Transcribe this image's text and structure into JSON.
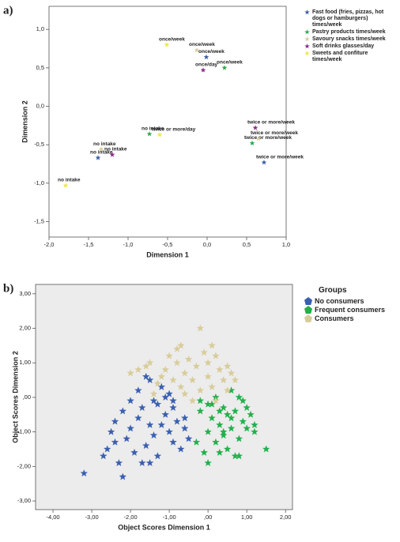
{
  "chart_data": [
    {
      "type": "scatter",
      "panel_label": "a)",
      "x_label": "Dimension 1",
      "y_label": "Dimension 2",
      "xlim": [
        -2.0,
        1.0
      ],
      "ylim": [
        -1.7,
        1.3
      ],
      "xticks": [
        {
          "value": -2.0,
          "label": "-2,0"
        },
        {
          "value": -1.5,
          "label": "-1,5"
        },
        {
          "value": -1.0,
          "label": "-1,0"
        },
        {
          "value": -0.5,
          "label": "-0,5"
        },
        {
          "value": 0.0,
          "label": "0,0"
        },
        {
          "value": 0.5,
          "label": "0,5"
        },
        {
          "value": 1.0,
          "label": "1,0"
        }
      ],
      "yticks": [
        {
          "value": 1.0,
          "label": "1,0"
        },
        {
          "value": 0.5,
          "label": "0,5"
        },
        {
          "value": 0.0,
          "label": "0,0"
        },
        {
          "value": -0.5,
          "label": "-0,5"
        },
        {
          "value": -1.0,
          "label": "-1,0"
        },
        {
          "value": -1.5,
          "label": "-1,5"
        }
      ],
      "series": [
        {
          "name": "Fast food (fries, pizzas, hot dogs or hamburgers) times/week",
          "color": "#3a5ba8",
          "x": [
            -0.01,
            0.72,
            -1.38
          ],
          "y": [
            0.64,
            -0.73,
            -0.67
          ],
          "labels": [
            "once/week",
            "twice or more/week",
            "no intake"
          ]
        },
        {
          "name": "Pastry products times/week",
          "color": "#2aa84a",
          "x": [
            0.22,
            0.57,
            -0.73
          ],
          "y": [
            0.5,
            -0.48,
            -0.36
          ],
          "labels": [
            "once/week",
            "twice or more/week",
            "no intake"
          ]
        },
        {
          "name": "Savoury snacks times/week",
          "color": "#d6cc9c",
          "x": [
            -0.13,
            0.65,
            -1.34
          ],
          "y": [
            0.73,
            -0.42,
            -0.56
          ],
          "labels": [
            "once/week",
            "twice or more/week",
            "no intake"
          ]
        },
        {
          "name": "Soft drinks glasses/day",
          "color": "#8a2a8a",
          "x": [
            -0.05,
            0.61,
            -1.2
          ],
          "y": [
            0.47,
            -0.28,
            -0.63
          ],
          "labels": [
            "once/day",
            "twice or more/week",
            "no intake"
          ]
        },
        {
          "name": "Sweets and confiture times/week",
          "color": "#f2e640",
          "x": [
            -0.51,
            -0.6,
            -1.79
          ],
          "y": [
            0.8,
            -0.37,
            -1.03
          ],
          "labels": [
            "once/week",
            "twice or more/day",
            "no intake"
          ]
        }
      ]
    },
    {
      "type": "scatter",
      "panel_label": "b)",
      "x_label": "Object Scores Dimension 1",
      "y_label": "Object Scores Dimension 2",
      "legend_title": "Groups",
      "xlim": [
        -4.45,
        2.18
      ],
      "ylim": [
        -3.25,
        3.27
      ],
      "xticks": [
        {
          "value": -4,
          "label": "-4,00"
        },
        {
          "value": -3,
          "label": "-3,00"
        },
        {
          "value": -2,
          "label": "-2,00"
        },
        {
          "value": -1,
          "label": "-1,00"
        },
        {
          "value": 0,
          "label": ",00"
        },
        {
          "value": 1,
          "label": "1,00"
        },
        {
          "value": 2,
          "label": "2,00"
        }
      ],
      "yticks": [
        {
          "value": 3,
          "label": "3,00"
        },
        {
          "value": 2,
          "label": "2,00"
        },
        {
          "value": 1,
          "label": "1,00"
        },
        {
          "value": 0,
          "label": ",00"
        },
        {
          "value": -1,
          "label": "-1,00"
        },
        {
          "value": -2,
          "label": "-2,00"
        },
        {
          "value": -3,
          "label": "-3,00"
        }
      ],
      "series": [
        {
          "name": "No consumers",
          "color": "#3a5fb0",
          "x": [
            -3.2,
            -2.2,
            -2.7,
            -2.5,
            -2.6,
            -2.4,
            -2.3,
            -2.2,
            -2.1,
            -2.0,
            -1.9,
            -1.8,
            -1.7,
            -1.6,
            -1.5,
            -1.5,
            -1.4,
            -1.3,
            -1.3,
            -1.2,
            -1.1,
            -1.0,
            -1.0,
            -0.9,
            -0.9,
            -0.8,
            -0.7,
            -0.6,
            -0.6,
            -0.5,
            -1.6,
            -1.8,
            -2.0,
            -1.4,
            -1.2,
            -1.1,
            -0.9,
            -1.7,
            -2.4,
            -1.5
          ],
          "y": [
            -2.2,
            -2.3,
            -1.7,
            -1.0,
            -1.5,
            -1.3,
            -1.9,
            -0.4,
            -1.2,
            -0.9,
            -1.6,
            -0.6,
            -0.3,
            -1.4,
            -0.8,
            0.5,
            -1.1,
            -0.2,
            -1.7,
            0.3,
            -0.5,
            0.1,
            -1.0,
            -0.3,
            -1.3,
            -0.7,
            -1.5,
            -0.9,
            -0.6,
            -1.2,
            0.6,
            0.2,
            -0.1,
            -0.1,
            -0.8,
            0.0,
            -0.1,
            -1.9,
            -0.7,
            -1.9
          ]
        },
        {
          "name": "Frequent consumers",
          "color": "#22b04a",
          "x": [
            -0.3,
            -0.2,
            -0.1,
            0.0,
            0.0,
            0.1,
            0.2,
            0.2,
            0.3,
            0.3,
            0.4,
            0.4,
            0.5,
            0.5,
            0.6,
            0.6,
            0.7,
            0.7,
            0.8,
            0.8,
            0.9,
            0.9,
            1.0,
            1.1,
            1.2,
            1.2,
            1.5,
            -0.2,
            0.1,
            0.4,
            0.6,
            0.0,
            0.3,
            0.8,
            1.0
          ],
          "y": [
            -1.3,
            -0.4,
            -1.6,
            -0.2,
            -1.0,
            -0.6,
            -1.3,
            0.0,
            -0.8,
            -1.6,
            -0.3,
            -1.0,
            -0.5,
            -1.5,
            0.2,
            -0.9,
            -0.4,
            -1.7,
            0.0,
            -1.2,
            -0.7,
            -0.1,
            -0.9,
            -0.5,
            -1.0,
            -0.8,
            -1.5,
            -0.1,
            -0.2,
            -1.1,
            -0.6,
            -1.9,
            -0.4,
            -1.7,
            -0.3
          ]
        },
        {
          "name": "Consumers",
          "color": "#d8cc9a",
          "x": [
            -2.0,
            -1.8,
            -1.6,
            -1.5,
            -1.3,
            -1.2,
            -1.1,
            -1.0,
            -0.9,
            -0.8,
            -0.7,
            -0.7,
            -0.6,
            -0.5,
            -0.4,
            -0.3,
            -0.2,
            -0.2,
            -0.1,
            0.0,
            0.0,
            0.1,
            0.1,
            0.2,
            0.3,
            0.4,
            0.5,
            0.5,
            0.6,
            0.7,
            -0.6,
            -0.4,
            -1.4,
            0.2,
            -0.8
          ],
          "y": [
            0.7,
            0.8,
            0.9,
            1.0,
            0.4,
            0.6,
            0.8,
            1.2,
            0.5,
            1.0,
            1.5,
            0.3,
            0.7,
            1.1,
            0.5,
            0.9,
            2.0,
            0.2,
            1.3,
            0.6,
            1.0,
            1.5,
            0.3,
            1.2,
            0.8,
            0.5,
            0.9,
            0.2,
            0.7,
            0.5,
            0.1,
            -0.1,
            0.1,
            -0.1,
            1.4
          ]
        }
      ]
    }
  ]
}
